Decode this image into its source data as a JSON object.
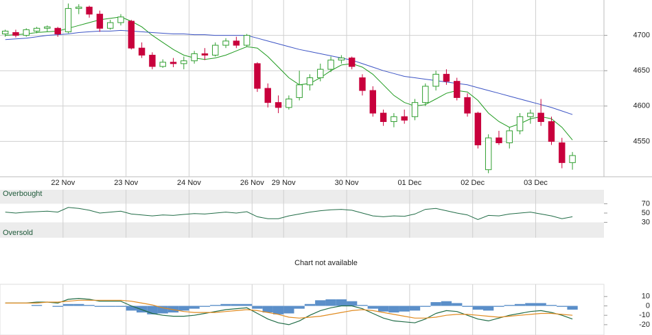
{
  "chart_data": [
    {
      "type": "candlestick",
      "xlim": [
        -0.5,
        57
      ],
      "xticks": [
        {
          "value": 5.5,
          "label": "22 Nov"
        },
        {
          "value": 11.5,
          "label": "23 Nov"
        },
        {
          "value": 17.5,
          "label": "24 Nov"
        },
        {
          "value": 23.5,
          "label": "26 Nov"
        },
        {
          "value": 26.5,
          "label": "29 Nov"
        },
        {
          "value": 32.5,
          "label": "30 Nov"
        },
        {
          "value": 38.5,
          "label": "01 Dec"
        },
        {
          "value": 44.5,
          "label": "02 Dec"
        },
        {
          "value": 50.5,
          "label": "03 Dec"
        }
      ],
      "ylim": [
        4500,
        4750
      ],
      "yticks": [
        4550,
        4600,
        4650,
        4700
      ],
      "grid": true,
      "up_color": "#2e9e2e",
      "down_color": "#c8003c",
      "open": [
        4702,
        4704,
        4700,
        4706,
        4710,
        4710,
        4705,
        4738,
        4740,
        4730,
        4710,
        4718,
        4720,
        4682,
        4672,
        4656,
        4662,
        4660,
        4664,
        4674,
        4672,
        4686,
        4692,
        4686,
        4660,
        4625,
        4605,
        4598,
        4612,
        4630,
        4640,
        4652,
        4665,
        4668,
        4640,
        4622,
        4590,
        4578,
        4585,
        4585,
        4605,
        4628,
        4645,
        4635,
        4612,
        4590,
        4510,
        4555,
        4548,
        4565,
        4585,
        4590,
        4578,
        4548,
        4520
      ],
      "high": [
        4708,
        4708,
        4710,
        4712,
        4714,
        4712,
        4745,
        4744,
        4742,
        4735,
        4722,
        4730,
        4722,
        4690,
        4676,
        4666,
        4668,
        4670,
        4678,
        4682,
        4690,
        4696,
        4698,
        4702,
        4662,
        4632,
        4615,
        4615,
        4650,
        4645,
        4660,
        4670,
        4672,
        4670,
        4645,
        4628,
        4595,
        4590,
        4595,
        4610,
        4632,
        4650,
        4652,
        4640,
        4618,
        4592,
        4560,
        4565,
        4570,
        4590,
        4595,
        4610,
        4585,
        4555,
        4535
      ],
      "low": [
        4698,
        4697,
        4698,
        4703,
        4705,
        4698,
        4703,
        4730,
        4725,
        4705,
        4708,
        4714,
        4680,
        4668,
        4652,
        4654,
        4655,
        4652,
        4660,
        4665,
        4670,
        4682,
        4682,
        4684,
        4620,
        4598,
        4590,
        4595,
        4608,
        4622,
        4635,
        4648,
        4660,
        4652,
        4615,
        4585,
        4572,
        4570,
        4575,
        4580,
        4600,
        4622,
        4630,
        4608,
        4585,
        4540,
        4505,
        4545,
        4540,
        4560,
        4575,
        4572,
        4545,
        4512,
        4510
      ],
      "close": [
        4706,
        4700,
        4708,
        4710,
        4712,
        4702,
        4738,
        4740,
        4730,
        4710,
        4718,
        4726,
        4682,
        4672,
        4656,
        4662,
        4660,
        4664,
        4674,
        4672,
        4686,
        4692,
        4686,
        4700,
        4625,
        4605,
        4598,
        4610,
        4630,
        4640,
        4652,
        4665,
        4668,
        4656,
        4622,
        4590,
        4578,
        4585,
        4580,
        4605,
        4628,
        4645,
        4635,
        4612,
        4590,
        4545,
        4555,
        4548,
        4565,
        4585,
        4590,
        4578,
        4550,
        4520,
        4530
      ],
      "series": [
        {
          "color": "#1e9a1e",
          "values": [
            4700,
            4701,
            4702,
            4704,
            4705,
            4706,
            4710,
            4714,
            4718,
            4722,
            4724,
            4726,
            4720,
            4712,
            4700,
            4690,
            4680,
            4672,
            4668,
            4666,
            4668,
            4672,
            4678,
            4684,
            4682,
            4670,
            4655,
            4640,
            4630,
            4632,
            4640,
            4650,
            4658,
            4660,
            4655,
            4645,
            4630,
            4615,
            4605,
            4600,
            4602,
            4610,
            4618,
            4622,
            4620,
            4608,
            4590,
            4578,
            4570,
            4575,
            4582,
            4585,
            4582,
            4570,
            4552
          ]
        },
        {
          "color": "#3a52c4",
          "values": [
            4694,
            4695,
            4696,
            4698,
            4700,
            4701,
            4702,
            4704,
            4705,
            4706,
            4706,
            4707,
            4706,
            4705,
            4704,
            4703,
            4702,
            4702,
            4701,
            4701,
            4700,
            4700,
            4700,
            4700,
            4696,
            4692,
            4688,
            4684,
            4680,
            4677,
            4674,
            4671,
            4668,
            4665,
            4660,
            4655,
            4650,
            4646,
            4642,
            4640,
            4638,
            4636,
            4634,
            4632,
            4630,
            4626,
            4622,
            4618,
            4614,
            4610,
            4606,
            4602,
            4598,
            4593,
            4588
          ]
        }
      ]
    },
    {
      "type": "line",
      "xlim": [
        -0.5,
        57
      ],
      "ylim": [
        0,
        100
      ],
      "yticks": [
        30,
        50,
        70
      ],
      "overbought": 70,
      "oversold": 30,
      "overbought_label": "Overbought",
      "oversold_label": "Oversold",
      "series": [
        {
          "color": "#1f6b45",
          "values": [
            52,
            50,
            52,
            53,
            54,
            52,
            62,
            60,
            56,
            50,
            52,
            54,
            48,
            46,
            44,
            46,
            45,
            47,
            49,
            48,
            50,
            52,
            50,
            53,
            42,
            38,
            38,
            44,
            48,
            52,
            55,
            57,
            58,
            56,
            50,
            44,
            42,
            44,
            43,
            48,
            58,
            60,
            55,
            50,
            46,
            36,
            45,
            44,
            48,
            50,
            52,
            48,
            44,
            38,
            42
          ]
        }
      ]
    },
    {
      "type": "macd",
      "xlim": [
        -0.5,
        57
      ],
      "ylim": [
        -31,
        23
      ],
      "yticks": [
        -20,
        -10,
        0,
        10
      ],
      "series": [
        {
          "kind": "bar",
          "color": "#5b8fc9",
          "values": [
            0,
            0,
            0,
            1,
            0,
            -1,
            2,
            2,
            1,
            -1,
            -1,
            -1,
            -5,
            -7,
            -9,
            -8,
            -7,
            -5,
            -3,
            -1,
            1,
            2,
            2,
            2,
            -3,
            -7,
            -9,
            -8,
            -3,
            2,
            6,
            7,
            7,
            5,
            1,
            -3,
            -6,
            -7,
            -6,
            -5,
            -1,
            4,
            5,
            3,
            -1,
            -4,
            -5,
            -1,
            1,
            2,
            3,
            3,
            1,
            -1,
            -4
          ]
        },
        {
          "kind": "line",
          "color": "#1f6b45",
          "values": [
            3,
            3,
            3,
            4,
            4,
            3,
            7,
            8,
            7,
            5,
            5,
            5,
            0,
            -4,
            -8,
            -10,
            -11,
            -11,
            -10,
            -8,
            -6,
            -4,
            -3,
            -2,
            -8,
            -14,
            -18,
            -20,
            -16,
            -10,
            -5,
            -2,
            0,
            0,
            -3,
            -8,
            -13,
            -16,
            -17,
            -18,
            -14,
            -8,
            -5,
            -6,
            -10,
            -14,
            -16,
            -13,
            -10,
            -8,
            -6,
            -5,
            -7,
            -10,
            -14
          ]
        },
        {
          "kind": "line",
          "color": "#e08a1e",
          "values": [
            3,
            3,
            3,
            3,
            4,
            4,
            5,
            6,
            6,
            6,
            6,
            6,
            5,
            3,
            1,
            -2,
            -4,
            -6,
            -7,
            -7,
            -7,
            -6,
            -5,
            -4,
            -5,
            -7,
            -9,
            -12,
            -13,
            -12,
            -11,
            -9,
            -7,
            -5,
            -4,
            -5,
            -7,
            -9,
            -11,
            -13,
            -13,
            -12,
            -10,
            -9,
            -9,
            -10,
            -11,
            -12,
            -11,
            -10,
            -9,
            -8,
            -8,
            -9,
            -10
          ]
        }
      ]
    }
  ],
  "notice": "Chart not available"
}
